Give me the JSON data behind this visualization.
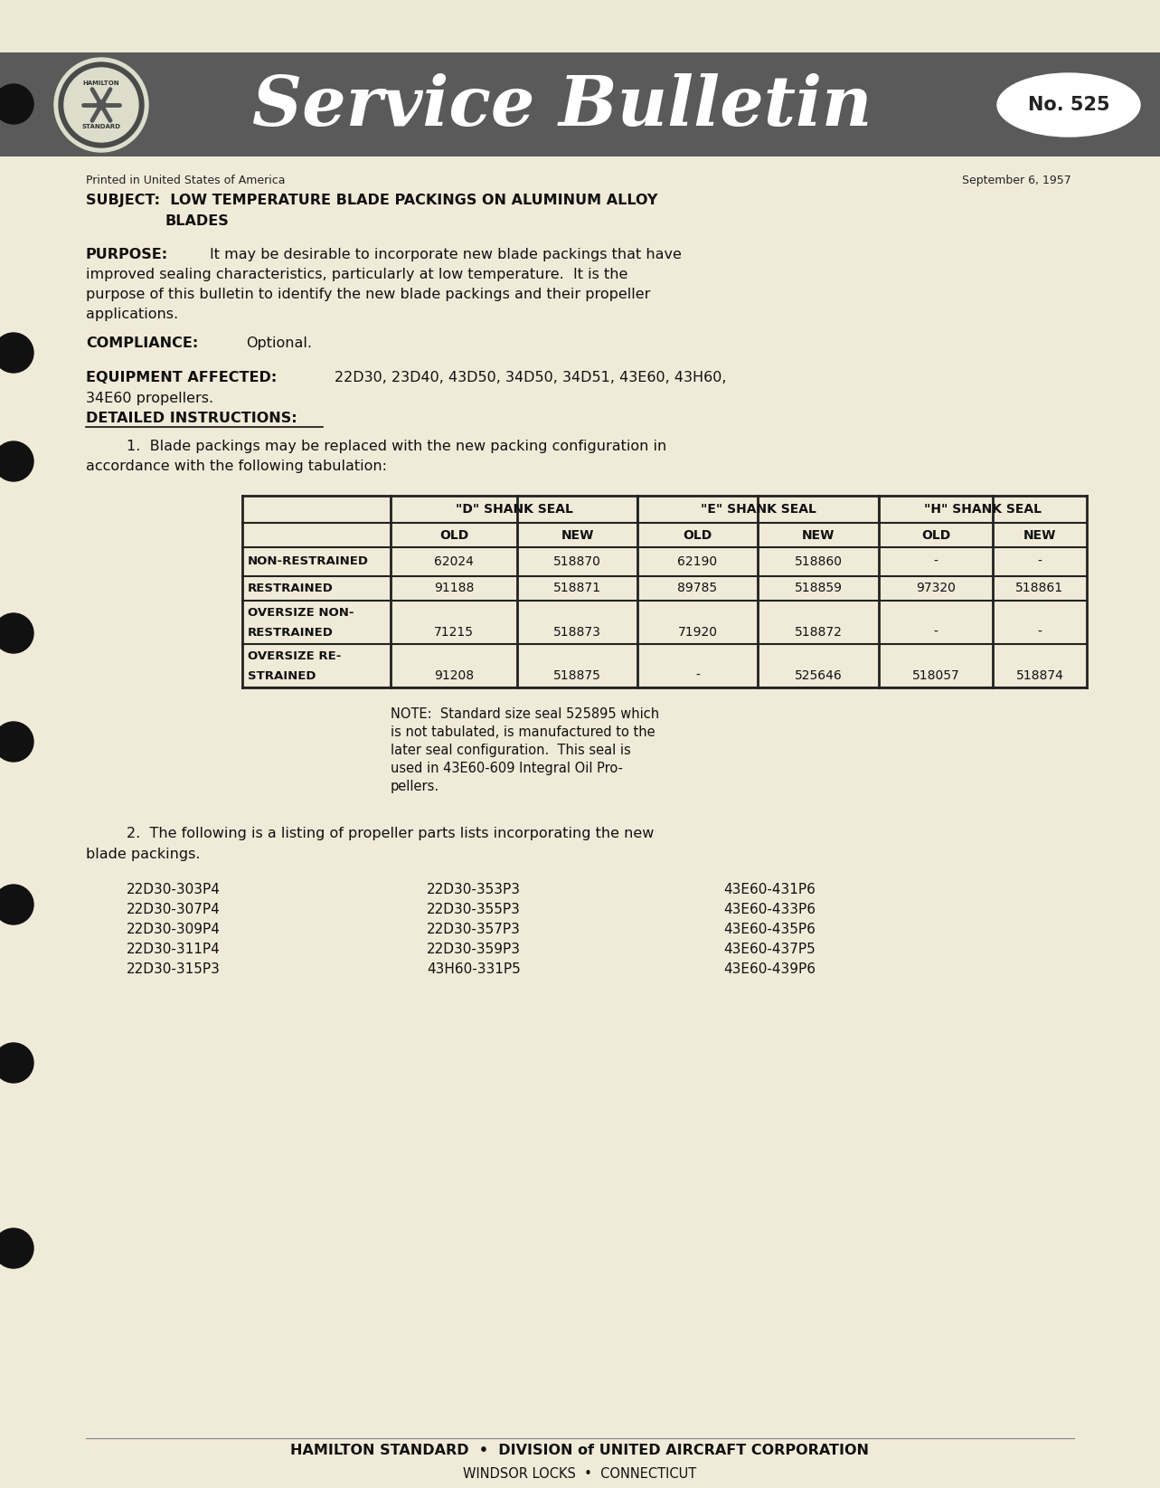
{
  "bg_color": "#f0ead8",
  "header_bg": "#5a5a5a",
  "bulletin_number": "No. 525",
  "date": "September 6, 1957",
  "printed_line": "Printed in United States of America",
  "table_headers_main": [
    "\"D\" SHANK SEAL",
    "\"E\" SHANK SEAL",
    "\"H\" SHANK SEAL"
  ],
  "table_headers_sub": [
    "OLD",
    "NEW",
    "OLD",
    "NEW",
    "OLD",
    "NEW"
  ],
  "table_rows": [
    [
      "NON-RESTRAINED",
      "62024",
      "518870",
      "62190",
      "518860",
      "-",
      "-"
    ],
    [
      "RESTRAINED",
      "91188",
      "518871",
      "89785",
      "518859",
      "97320",
      "518861"
    ],
    [
      "OVERSIZE NON-\nRESTRAINED",
      "71215",
      "518873",
      "71920",
      "518872",
      "-",
      "-"
    ],
    [
      "OVERSIZE RE-\nSTRAINED",
      "91208",
      "518875",
      "-",
      "525646",
      "518057",
      "518874"
    ]
  ],
  "note_lines": [
    "NOTE:  Standard size seal 525895 which",
    "is not tabulated, is manufactured to the",
    "later seal configuration.  This seal is",
    "used in 43E60-609 Integral Oil Pro-",
    "pellers."
  ],
  "parts_col1": [
    "22D30-303P4",
    "22D30-307P4",
    "22D30-309P4",
    "22D30-311P4",
    "22D30-315P3"
  ],
  "parts_col2": [
    "22D30-353P3",
    "22D30-355P3",
    "22D30-357P3",
    "22D30-359P3",
    "43H60-331P5"
  ],
  "parts_col3": [
    "43E60-431P6",
    "43E60-433P6",
    "43E60-435P6",
    "43E60-437P5",
    "43E60-439P6"
  ],
  "hole_punch_y": [
    115,
    390,
    510,
    700,
    820,
    1000,
    1175,
    1380
  ]
}
